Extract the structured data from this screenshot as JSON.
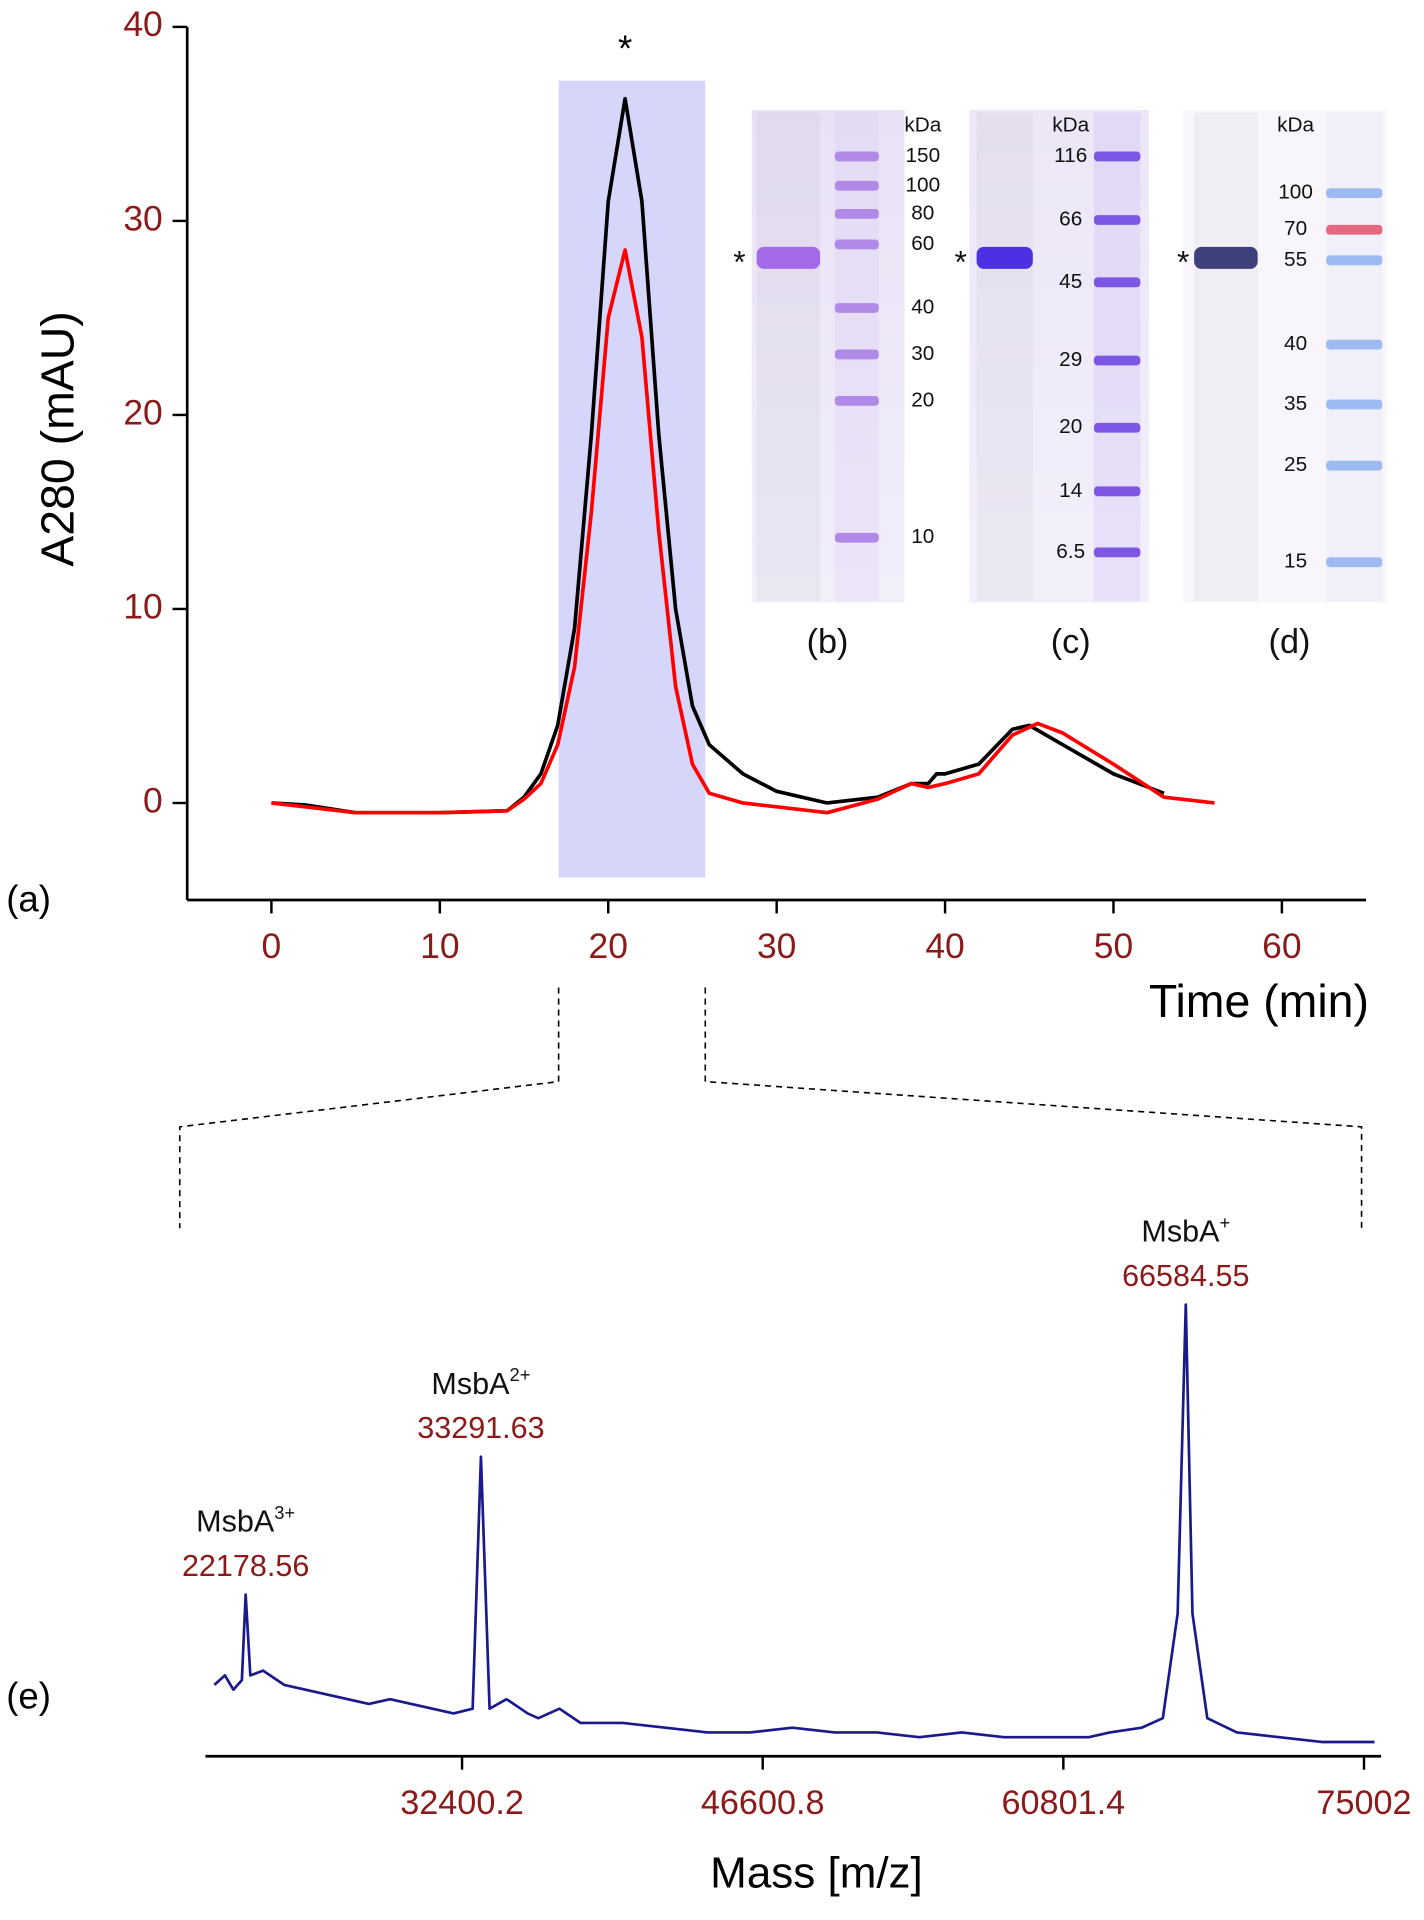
{
  "chart_data": [
    {
      "type": "line",
      "panel": "(a)",
      "x_label": "Time (min)",
      "y_label": "A280 (mAU)",
      "xlim": [
        -5,
        65
      ],
      "xticks": [
        0,
        10,
        20,
        30,
        40,
        50,
        60
      ],
      "ylim": [
        -5,
        40
      ],
      "yticks": [
        0,
        10,
        20,
        30,
        40
      ],
      "annotations": [
        {
          "text": "*",
          "x": 21
        }
      ],
      "series": [
        {
          "color": "#000000",
          "x": [
            0,
            2,
            5,
            10,
            14,
            15,
            16,
            17,
            18,
            19,
            20,
            21,
            22,
            23,
            24,
            25,
            26,
            28,
            30,
            33,
            36,
            38,
            39,
            39.5,
            40,
            42,
            44,
            45,
            47,
            50,
            53
          ],
          "values": [
            0,
            -0.1,
            -0.5,
            -0.5,
            -0.4,
            0.3,
            1.5,
            4,
            9,
            19,
            31,
            36.3,
            31,
            19,
            10,
            5,
            3,
            1.5,
            0.6,
            0,
            0.3,
            1,
            1,
            1.5,
            1.5,
            2,
            3.8,
            4,
            3,
            1.5,
            0.5
          ]
        },
        {
          "color": "#ff0000",
          "x": [
            0,
            5,
            10,
            14,
            15,
            16,
            17,
            18,
            19,
            20,
            21,
            22,
            23,
            24,
            25,
            26,
            28,
            30,
            33,
            36,
            38,
            39,
            40,
            42,
            44,
            45.5,
            47,
            50,
            53,
            56
          ],
          "values": [
            0,
            -0.5,
            -0.5,
            -0.4,
            0.2,
            1,
            3,
            7,
            15,
            25,
            28.5,
            24,
            14,
            6,
            2,
            0.5,
            0,
            -0.2,
            -0.5,
            0.2,
            1,
            0.8,
            1,
            1.5,
            3.5,
            4.1,
            3.6,
            2,
            0.3,
            0
          ]
        }
      ]
    },
    {
      "type": "line",
      "panel": "(e)",
      "x_label": "Mass [m/z]",
      "xlim": [
        20278,
        75811
      ],
      "xticks": [
        32400.2,
        46600.8,
        60801.4,
        75002
      ],
      "ylim": [
        0,
        100
      ],
      "peak_labels": [
        {
          "name": "MsbA",
          "charge": "3+",
          "x": 22178.56
        },
        {
          "name": "MsbA",
          "charge": "2+",
          "x": 33291.63
        },
        {
          "name": "MsbA",
          "charge": "+",
          "x": 66584.55
        }
      ],
      "series": [
        {
          "color": "#1a1a8c",
          "x": [
            20700,
            21200,
            21600,
            22000,
            22178.56,
            22400,
            23000,
            24000,
            25000,
            26000,
            27000,
            28000,
            29000,
            30000,
            31000,
            32000,
            32900,
            33291.63,
            33700,
            34500,
            35500,
            36000,
            37000,
            38000,
            40000,
            42000,
            44000,
            46000,
            48000,
            50000,
            52000,
            54000,
            56000,
            58000,
            60000,
            62000,
            63000,
            64500,
            65500,
            66200,
            66584.55,
            66900,
            67600,
            69000,
            71000,
            73000,
            75500
          ],
          "values": [
            15,
            17,
            14,
            16,
            34,
            17,
            18,
            15,
            14,
            13,
            12,
            11,
            12,
            11,
            10,
            9,
            10,
            63,
            10,
            12,
            9,
            8,
            10,
            7,
            7,
            6,
            5,
            5,
            6,
            5,
            5,
            4,
            5,
            4,
            4,
            4,
            5,
            6,
            8,
            30,
            95,
            30,
            8,
            5,
            4,
            3,
            3
          ]
        }
      ]
    }
  ],
  "gels": [
    {
      "label": "(b)",
      "unit": "kDa",
      "band_mark": "*",
      "markers": [
        "150",
        "100",
        "80",
        "60",
        "40",
        "30",
        "20",
        "10"
      ]
    },
    {
      "label": "(c)",
      "unit": "kDa",
      "band_mark": "*",
      "markers": [
        "116",
        "66",
        "45",
        "29",
        "20",
        "14",
        "6.5"
      ]
    },
    {
      "label": "(d)",
      "unit": "kDa",
      "band_mark": "*",
      "markers": [
        "100",
        "70",
        "55",
        "40",
        "35",
        "25",
        "15"
      ]
    }
  ]
}
